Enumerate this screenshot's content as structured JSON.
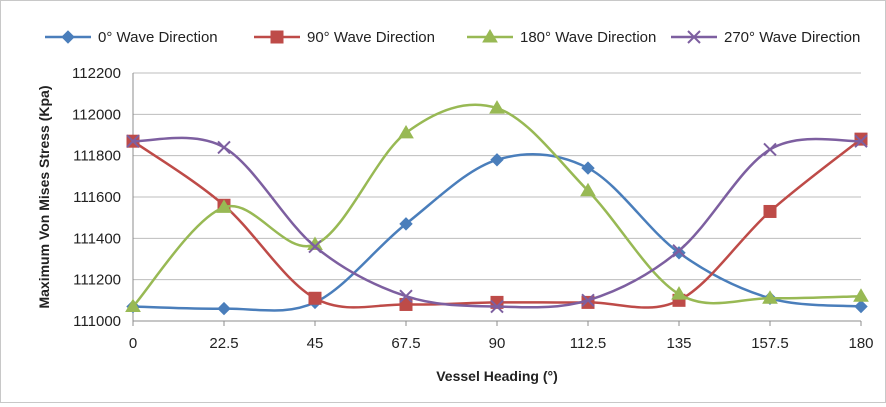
{
  "chart_data": {
    "type": "line",
    "title": "",
    "xlabel": "Vessel Heading (°)",
    "ylabel": "Maximum Von Mises Stress (Kpa)",
    "x": [
      0,
      22.5,
      45,
      67.5,
      90,
      112.5,
      135,
      157.5,
      180
    ],
    "x_tick_labels": [
      "0",
      "22.5",
      "45",
      "67.5",
      "90",
      "112.5",
      "135",
      "157.5",
      "180"
    ],
    "ylim": [
      111000,
      112200
    ],
    "y_ticks": [
      111000,
      111200,
      111400,
      111600,
      111800,
      112000,
      112200
    ],
    "y_tick_labels": [
      "111000",
      "111200",
      "111400",
      "111600",
      "111800",
      "112000",
      "112200"
    ],
    "grid": "horizontal",
    "legend_position": "top",
    "series": [
      {
        "name": "0° Wave Direction",
        "color": "#4a7ebb",
        "marker": "diamond",
        "values": [
          111070,
          111060,
          111090,
          111470,
          111780,
          111740,
          111330,
          111110,
          111070
        ]
      },
      {
        "name": "90° Wave Direction",
        "color": "#be4b48",
        "marker": "square",
        "values": [
          111870,
          111560,
          111110,
          111080,
          111090,
          111090,
          111100,
          111530,
          111880
        ]
      },
      {
        "name": "180° Wave Direction",
        "color": "#98b954",
        "marker": "triangle",
        "values": [
          111070,
          111550,
          111370,
          111910,
          112030,
          111630,
          111130,
          111110,
          111120
        ]
      },
      {
        "name": "270° Wave Direction",
        "color": "#7d5fa0",
        "marker": "x",
        "values": [
          111870,
          111840,
          111360,
          111120,
          111070,
          111100,
          111340,
          111830,
          111870
        ]
      }
    ]
  }
}
